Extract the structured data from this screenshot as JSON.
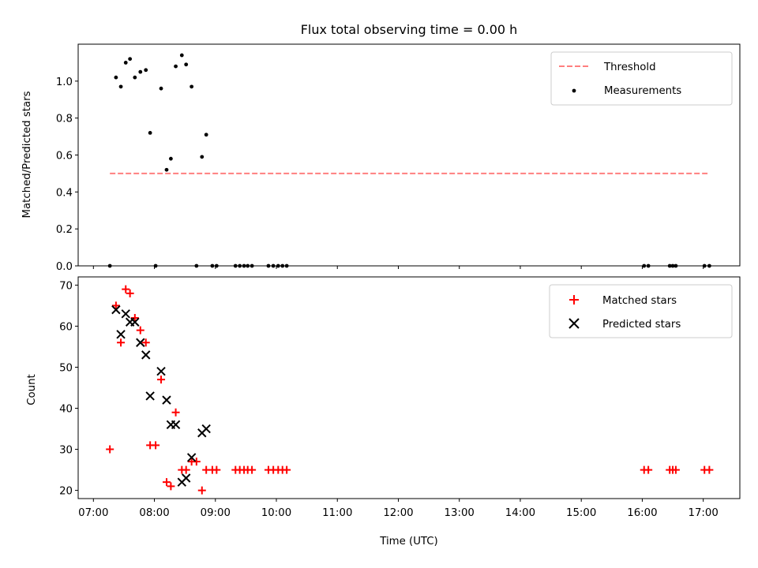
{
  "chart_data": [
    {
      "type": "scatter",
      "title": "Flux total observing time = 0.00 h",
      "xlabel": "",
      "ylabel": "Matched/Predicted stars",
      "xlim": [
        6.75,
        17.6
      ],
      "ylim": [
        0.0,
        1.2
      ],
      "yticks": [
        0.0,
        0.2,
        0.4,
        0.6,
        0.8,
        1.0
      ],
      "ytick_labels": [
        "0.0",
        "0.2",
        "0.4",
        "0.6",
        "0.8",
        "1.0"
      ],
      "xticks": [
        7,
        8,
        9,
        10,
        11,
        12,
        13,
        14,
        15,
        16,
        17
      ],
      "legend": {
        "location": "upper right",
        "entries": [
          "Threshold",
          "Measurements"
        ]
      },
      "threshold": {
        "name": "Threshold",
        "y": 0.5,
        "x_range": [
          7.27,
          17.07
        ],
        "color": "#ff7f7f"
      },
      "series": [
        {
          "name": "Measurements",
          "marker": "dot",
          "color": "#000000",
          "x": [
            7.27,
            7.37,
            7.45,
            7.53,
            7.6,
            7.68,
            7.77,
            7.86,
            7.93,
            8.02,
            8.11,
            8.2,
            8.27,
            8.35,
            8.45,
            8.52,
            8.61,
            8.69,
            8.78,
            8.85,
            8.95,
            9.02,
            9.33,
            9.4,
            9.47,
            9.53,
            9.6,
            9.87,
            9.95,
            10.03,
            10.1,
            10.17,
            16.03,
            16.1,
            16.45,
            16.5,
            16.55,
            17.02,
            17.1
          ],
          "y": [
            0.0,
            1.02,
            0.97,
            1.1,
            1.12,
            1.02,
            1.05,
            1.06,
            0.72,
            0.0,
            0.96,
            0.52,
            0.58,
            1.08,
            1.14,
            1.09,
            0.97,
            0.0,
            0.59,
            0.71,
            0.0,
            0.0,
            0.0,
            0.0,
            0.0,
            0.0,
            0.0,
            0.0,
            0.0,
            0.0,
            0.0,
            0.0,
            0.0,
            0.0,
            0.0,
            0.0,
            0.0,
            0.0,
            0.0
          ]
        }
      ]
    },
    {
      "type": "scatter",
      "title": "",
      "xlabel": "Time (UTC)",
      "ylabel": "Count",
      "xlim": [
        6.75,
        17.6
      ],
      "ylim": [
        18,
        72
      ],
      "yticks": [
        20,
        30,
        40,
        50,
        60,
        70
      ],
      "ytick_labels": [
        "20",
        "30",
        "40",
        "50",
        "60",
        "70"
      ],
      "xticks": [
        7,
        8,
        9,
        10,
        11,
        12,
        13,
        14,
        15,
        16,
        17
      ],
      "xtick_labels": [
        "07:00",
        "08:00",
        "09:00",
        "10:00",
        "11:00",
        "12:00",
        "13:00",
        "14:00",
        "15:00",
        "16:00",
        "17:00"
      ],
      "legend": {
        "location": "upper right",
        "entries": [
          "Matched stars",
          "Predicted stars"
        ]
      },
      "series": [
        {
          "name": "Matched stars",
          "marker": "plus",
          "color": "#ff0000",
          "x": [
            7.27,
            7.37,
            7.45,
            7.53,
            7.6,
            7.68,
            7.77,
            7.86,
            7.93,
            8.02,
            8.11,
            8.2,
            8.27,
            8.35,
            8.45,
            8.52,
            8.61,
            8.69,
            8.78,
            8.85,
            8.95,
            9.02,
            9.33,
            9.4,
            9.47,
            9.53,
            9.6,
            9.87,
            9.95,
            10.03,
            10.1,
            10.17,
            16.03,
            16.1,
            16.45,
            16.5,
            16.55,
            17.02,
            17.1
          ],
          "y": [
            30,
            65,
            56,
            69,
            68,
            62,
            59,
            56,
            31,
            31,
            47,
            22,
            21,
            39,
            25,
            25,
            27,
            27,
            20,
            25,
            25,
            25,
            25,
            25,
            25,
            25,
            25,
            25,
            25,
            25,
            25,
            25,
            25,
            25,
            25,
            25,
            25,
            25,
            25
          ]
        },
        {
          "name": "Predicted stars",
          "marker": "x",
          "color": "#000000",
          "x": [
            7.37,
            7.45,
            7.53,
            7.6,
            7.68,
            7.77,
            7.86,
            7.93,
            8.11,
            8.2,
            8.27,
            8.35,
            8.45,
            8.52,
            8.61,
            8.78,
            8.85
          ],
          "y": [
            64,
            58,
            63,
            61,
            61,
            56,
            53,
            43,
            49,
            42,
            36,
            36,
            22,
            23,
            28,
            34,
            35
          ]
        }
      ]
    }
  ]
}
